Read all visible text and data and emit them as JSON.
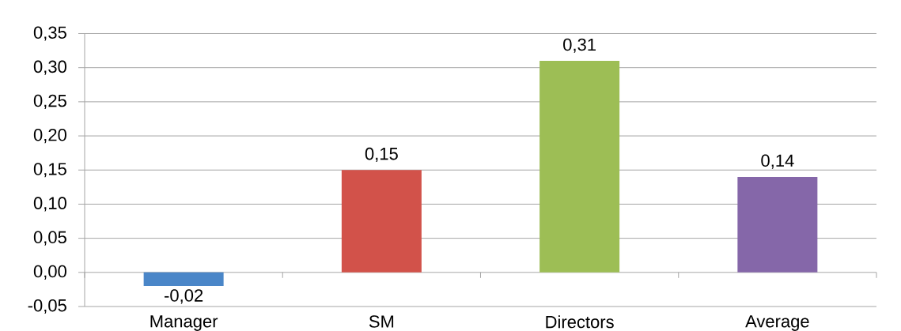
{
  "chart_data": {
    "type": "bar",
    "categories": [
      "Manager",
      "SM",
      "Directors",
      "Average"
    ],
    "values": [
      -0.02,
      0.15,
      0.31,
      0.14
    ],
    "colors": [
      "#4a86c8",
      "#d2524a",
      "#9dbe55",
      "#8567a9"
    ],
    "value_labels": [
      "-0,02",
      "0,15",
      "0,31",
      "0,14"
    ],
    "ylim": [
      -0.05,
      0.35
    ],
    "yticks": [
      {
        "value": -0.05,
        "label": "-0,05"
      },
      {
        "value": 0,
        "label": "0,00"
      },
      {
        "value": 0.05,
        "label": "0,05"
      },
      {
        "value": 0.1,
        "label": "0,10"
      },
      {
        "value": 0.15,
        "label": "0,15"
      },
      {
        "value": 0.2,
        "label": "0,20"
      },
      {
        "value": 0.25,
        "label": "0,25"
      },
      {
        "value": 0.3,
        "label": "0,30"
      },
      {
        "value": 0.35,
        "label": "0,35"
      }
    ],
    "grid": "y"
  }
}
